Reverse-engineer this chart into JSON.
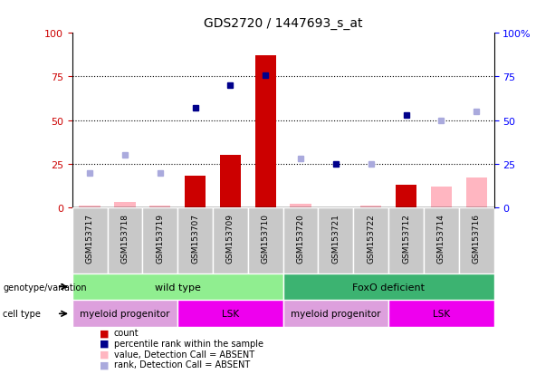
{
  "title": "GDS2720 / 1447693_s_at",
  "samples": [
    "GSM153717",
    "GSM153718",
    "GSM153719",
    "GSM153707",
    "GSM153709",
    "GSM153710",
    "GSM153720",
    "GSM153721",
    "GSM153722",
    "GSM153712",
    "GSM153714",
    "GSM153716"
  ],
  "count_values": [
    1,
    3,
    1,
    18,
    30,
    87,
    2,
    0,
    1,
    13,
    12,
    17
  ],
  "absent_call": [
    true,
    true,
    true,
    false,
    false,
    false,
    true,
    false,
    true,
    false,
    true,
    true
  ],
  "rank_values": [
    20,
    30,
    20,
    57,
    70,
    76,
    28,
    25,
    25,
    53,
    50,
    55
  ],
  "bar_color_present": "#CC0000",
  "bar_color_absent": "#FFB6C1",
  "dot_color_present": "#00008B",
  "dot_color_absent": "#AAAADD",
  "yticks": [
    0,
    25,
    50,
    75,
    100
  ],
  "wt_color": "#90EE90",
  "foxo_color": "#3CB371",
  "myeloid_color": "#DDA0DD",
  "lsk_color": "#EE00EE",
  "gray_col": "#C8C8C8"
}
